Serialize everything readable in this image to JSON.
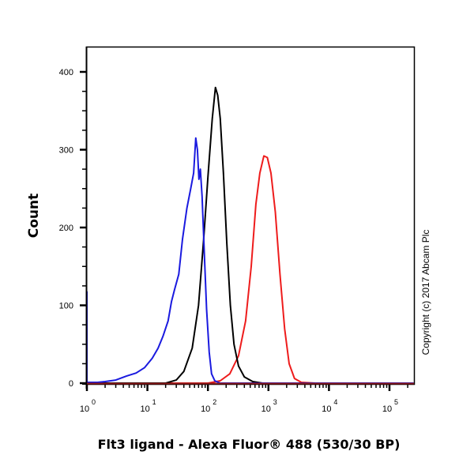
{
  "chart_data": {
    "type": "line",
    "title": "",
    "xlabel": "Flt3 ligand - Alexa Fluor® 488 (530/30 BP)",
    "ylabel": "Count",
    "xscale": "log",
    "xlim": [
      0.6,
      250000
    ],
    "ylim": [
      0,
      400
    ],
    "y_ticks": [
      0,
      100,
      200,
      300,
      400
    ],
    "x_ticks": [
      "10^0",
      "10^1",
      "10^2",
      "10^3",
      "10^4",
      "10^5"
    ],
    "grid": false,
    "legend": null,
    "annotation": "Copyright (c) 2017 Abcam Plc",
    "series": [
      {
        "name": "blue",
        "color": "#1a1adf",
        "points": [
          [
            0.6,
            118
          ],
          [
            0.62,
            60
          ],
          [
            0.65,
            5
          ],
          [
            0.8,
            1
          ],
          [
            1.5,
            1
          ],
          [
            2.0,
            2
          ],
          [
            3.0,
            4
          ],
          [
            4.5,
            9
          ],
          [
            6.5,
            13
          ],
          [
            9,
            20
          ],
          [
            12,
            32
          ],
          [
            15,
            45
          ],
          [
            18,
            60
          ],
          [
            22,
            80
          ],
          [
            25,
            105
          ],
          [
            28,
            120
          ],
          [
            33,
            140
          ],
          [
            38,
            185
          ],
          [
            45,
            225
          ],
          [
            52,
            250
          ],
          [
            58,
            270
          ],
          [
            63,
            315
          ],
          [
            67,
            300
          ],
          [
            71,
            262
          ],
          [
            75,
            275
          ],
          [
            80,
            240
          ],
          [
            88,
            160
          ],
          [
            95,
            95
          ],
          [
            105,
            40
          ],
          [
            115,
            12
          ],
          [
            130,
            3
          ],
          [
            160,
            0
          ],
          [
            1000,
            0
          ],
          [
            250000,
            0
          ]
        ]
      },
      {
        "name": "black",
        "color": "#000000",
        "points": [
          [
            0.6,
            0
          ],
          [
            20,
            0
          ],
          [
            30,
            4
          ],
          [
            40,
            15
          ],
          [
            55,
            45
          ],
          [
            70,
            100
          ],
          [
            85,
            185
          ],
          [
            100,
            265
          ],
          [
            118,
            340
          ],
          [
            133,
            380
          ],
          [
            145,
            370
          ],
          [
            160,
            340
          ],
          [
            180,
            270
          ],
          [
            205,
            180
          ],
          [
            235,
            100
          ],
          [
            270,
            50
          ],
          [
            320,
            22
          ],
          [
            400,
            8
          ],
          [
            550,
            2
          ],
          [
            800,
            0
          ],
          [
            250000,
            0
          ]
        ]
      },
      {
        "name": "red",
        "color": "#ee1c1c",
        "points": [
          [
            0.6,
            0
          ],
          [
            100,
            0
          ],
          [
            160,
            3
          ],
          [
            230,
            12
          ],
          [
            320,
            35
          ],
          [
            420,
            80
          ],
          [
            520,
            150
          ],
          [
            620,
            230
          ],
          [
            720,
            270
          ],
          [
            840,
            292
          ],
          [
            960,
            290
          ],
          [
            1100,
            270
          ],
          [
            1300,
            220
          ],
          [
            1550,
            140
          ],
          [
            1850,
            70
          ],
          [
            2200,
            25
          ],
          [
            2700,
            6
          ],
          [
            3500,
            1
          ],
          [
            6000,
            0
          ],
          [
            250000,
            0
          ]
        ]
      }
    ]
  },
  "axes": {
    "y_tick_labels": [
      "0",
      "100",
      "200",
      "300",
      "400"
    ],
    "x_tick_base": "10",
    "x_tick_exponents": [
      "0",
      "1",
      "2",
      "3",
      "4",
      "5"
    ],
    "ylabel": "Count",
    "xlabel": "Flt3 ligand - Alexa Fluor® 488 (530/30 BP)"
  },
  "copyright": "Copyright (c) 2017 Abcam Plc"
}
